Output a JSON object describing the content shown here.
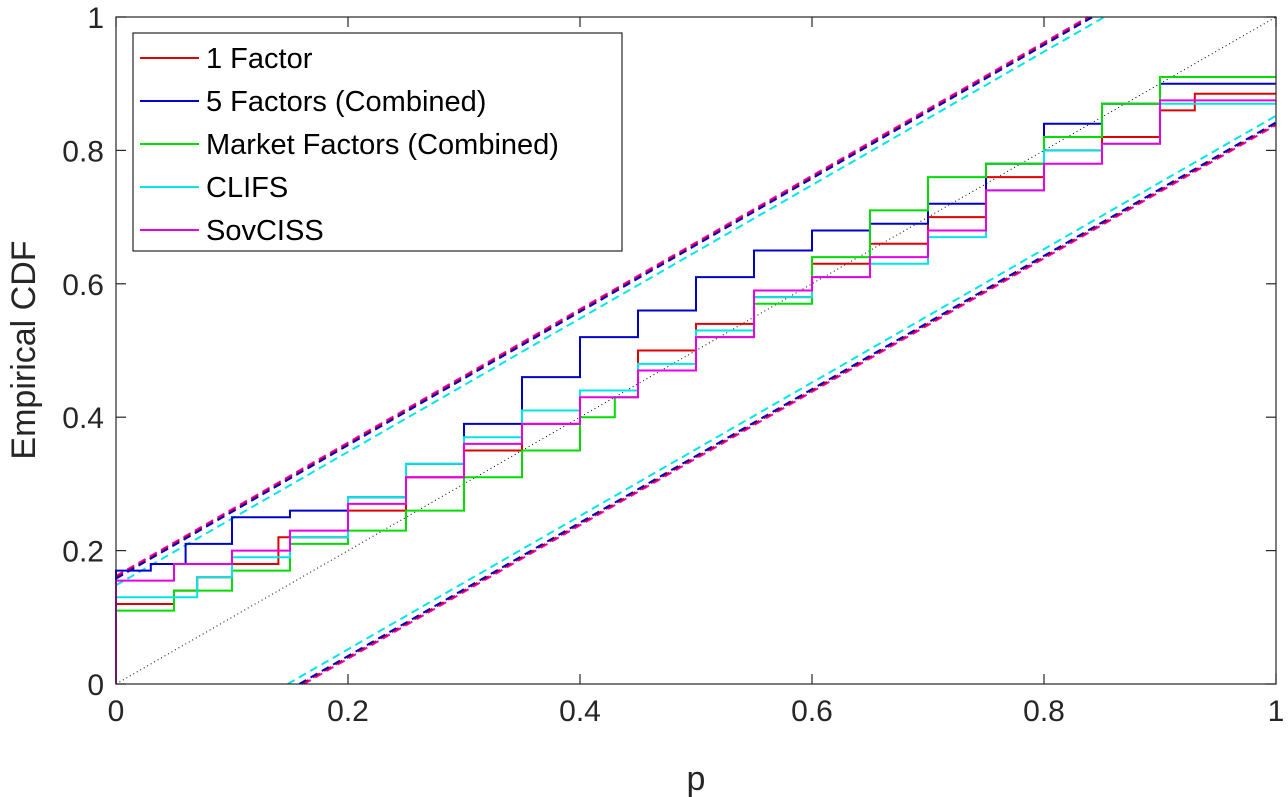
{
  "chart_data": {
    "type": "line",
    "title": "",
    "xlabel": "p",
    "ylabel": "Empirical CDF",
    "xlim": [
      0,
      1
    ],
    "ylim": [
      0,
      1
    ],
    "xticks": [
      0,
      0.2,
      0.4,
      0.6,
      0.8,
      1
    ],
    "yticks": [
      0,
      0.2,
      0.4,
      0.6,
      0.8,
      1
    ],
    "xtick_labels": [
      "0",
      "0.2",
      "0.4",
      "0.6",
      "0.8",
      "1"
    ],
    "ytick_labels": [
      "0",
      "0.2",
      "0.4",
      "0.6",
      "0.8",
      "1"
    ],
    "legend_position": "top-left",
    "grid": false,
    "reference_line": {
      "style": "dotted",
      "color": "#000000",
      "x": [
        0,
        1
      ],
      "y": [
        0,
        1
      ]
    },
    "series": [
      {
        "name": "1 Factor",
        "color": "#e00000",
        "x": [
          0,
          0.002,
          0.05,
          0.07,
          0.1,
          0.14,
          0.2,
          0.25,
          0.3,
          0.35,
          0.4,
          0.45,
          0.5,
          0.55,
          0.6,
          0.65,
          0.7,
          0.75,
          0.8,
          0.85,
          0.9,
          0.93,
          0.95,
          1.0
        ],
        "y": [
          0,
          0.12,
          0.12,
          0.14,
          0.16,
          0.18,
          0.22,
          0.26,
          0.31,
          0.35,
          0.39,
          0.44,
          0.5,
          0.54,
          0.58,
          0.63,
          0.66,
          0.7,
          0.76,
          0.8,
          0.82,
          0.86,
          0.885,
          0.885
        ]
      },
      {
        "name": "5 Factors (Combined)",
        "color": "#0000cc",
        "x": [
          0,
          0.002,
          0.03,
          0.06,
          0.1,
          0.15,
          0.2,
          0.25,
          0.3,
          0.35,
          0.4,
          0.45,
          0.5,
          0.55,
          0.6,
          0.65,
          0.7,
          0.75,
          0.8,
          0.85,
          0.9,
          0.95,
          1.0
        ],
        "y": [
          0,
          0.17,
          0.17,
          0.18,
          0.21,
          0.25,
          0.26,
          0.28,
          0.33,
          0.39,
          0.46,
          0.52,
          0.56,
          0.61,
          0.65,
          0.68,
          0.69,
          0.72,
          0.78,
          0.84,
          0.87,
          0.9,
          0.9
        ]
      },
      {
        "name": "Market Factors (Combined)",
        "color": "#00dd00",
        "x": [
          0,
          0.002,
          0.05,
          0.1,
          0.15,
          0.2,
          0.25,
          0.3,
          0.35,
          0.4,
          0.43,
          0.45,
          0.5,
          0.55,
          0.6,
          0.65,
          0.7,
          0.75,
          0.8,
          0.85,
          0.9,
          0.91,
          1.0
        ],
        "y": [
          0,
          0.11,
          0.11,
          0.14,
          0.17,
          0.21,
          0.23,
          0.26,
          0.31,
          0.35,
          0.4,
          0.43,
          0.47,
          0.52,
          0.57,
          0.64,
          0.71,
          0.76,
          0.78,
          0.82,
          0.87,
          0.91,
          0.91
        ]
      },
      {
        "name": "CLIFS",
        "color": "#00e6e6",
        "x": [
          0,
          0.002,
          0.07,
          0.1,
          0.15,
          0.2,
          0.25,
          0.3,
          0.35,
          0.4,
          0.45,
          0.5,
          0.55,
          0.6,
          0.65,
          0.7,
          0.75,
          0.8,
          0.85,
          0.9,
          0.95,
          1.0
        ],
        "y": [
          0,
          0.13,
          0.13,
          0.16,
          0.19,
          0.22,
          0.28,
          0.33,
          0.37,
          0.41,
          0.44,
          0.48,
          0.53,
          0.58,
          0.61,
          0.63,
          0.67,
          0.74,
          0.8,
          0.81,
          0.87,
          0.87
        ]
      },
      {
        "name": "SovCISS",
        "color": "#e600e6",
        "x": [
          0,
          0.002,
          0.05,
          0.1,
          0.15,
          0.2,
          0.25,
          0.3,
          0.35,
          0.4,
          0.45,
          0.5,
          0.55,
          0.6,
          0.65,
          0.7,
          0.75,
          0.8,
          0.85,
          0.9,
          0.95,
          1.0
        ],
        "y": [
          0,
          0.155,
          0.155,
          0.18,
          0.2,
          0.23,
          0.27,
          0.31,
          0.36,
          0.39,
          0.43,
          0.47,
          0.52,
          0.59,
          0.61,
          0.64,
          0.68,
          0.74,
          0.78,
          0.81,
          0.875,
          0.875
        ]
      }
    ],
    "confidence_bands": [
      {
        "color": "#e600e6",
        "offset": 0.162
      },
      {
        "color": "#e00000",
        "offset": 0.16
      },
      {
        "color": "#0000cc",
        "offset": 0.158
      },
      {
        "color": "#00e6e6",
        "offset": 0.148
      }
    ]
  }
}
